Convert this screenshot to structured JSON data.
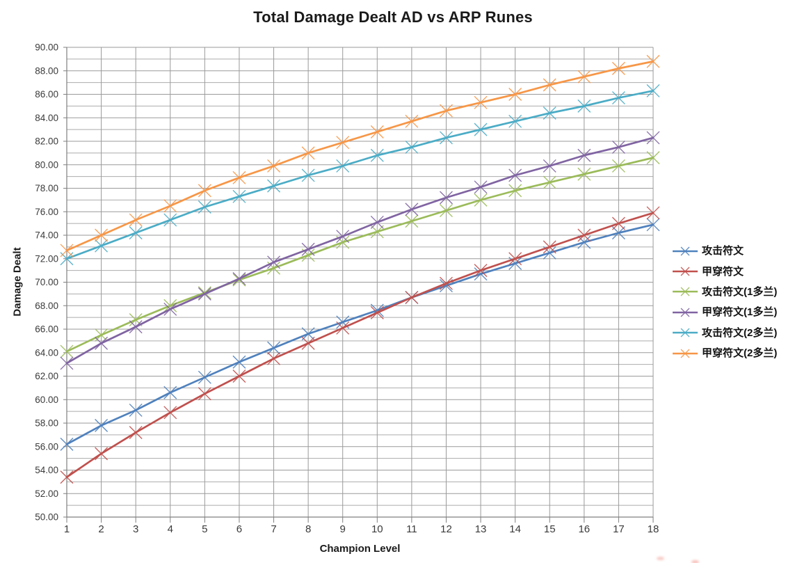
{
  "title": "Total Damage Dealt AD vs ARP Runes",
  "chart_data": {
    "type": "line",
    "title": "Total Damage Dealt AD vs ARP Runes",
    "xlabel": "Champion Level",
    "ylabel": "Damage Dealt",
    "x": [
      1,
      2,
      3,
      4,
      5,
      6,
      7,
      8,
      9,
      10,
      11,
      12,
      13,
      14,
      15,
      16,
      17,
      18
    ],
    "x_tick_labels": [
      "1",
      "2",
      "3",
      "4",
      "5",
      "6",
      "7",
      "8",
      "9",
      "10",
      "11",
      "12",
      "13",
      "14",
      "15",
      "16",
      "17",
      "18"
    ],
    "ylim": [
      50,
      90
    ],
    "ytick_step": 2,
    "minor_grid_step": 1,
    "ytick_labels": [
      "50.00",
      "52.00",
      "54.00",
      "56.00",
      "58.00",
      "60.00",
      "62.00",
      "64.00",
      "66.00",
      "68.00",
      "70.00",
      "72.00",
      "74.00",
      "76.00",
      "78.00",
      "80.00",
      "82.00",
      "84.00",
      "86.00",
      "88.00",
      "90.00"
    ],
    "grid": true,
    "marker": "x",
    "legend_position": "right-middle",
    "series": [
      {
        "name": "攻击符文",
        "color": "#4F81BD",
        "values": [
          56.2,
          57.8,
          59.1,
          60.6,
          61.9,
          63.2,
          64.4,
          65.6,
          66.6,
          67.6,
          68.7,
          69.7,
          70.7,
          71.6,
          72.5,
          73.4,
          74.2,
          74.9
        ]
      },
      {
        "name": "甲穿符文",
        "color": "#C0504D",
        "values": [
          53.4,
          55.4,
          57.2,
          58.9,
          60.5,
          62.0,
          63.5,
          64.8,
          66.1,
          67.4,
          68.7,
          69.9,
          71.0,
          72.0,
          73.0,
          74.0,
          75.0,
          75.9
        ]
      },
      {
        "name": "攻击符文(1多兰)",
        "color": "#9BBB59",
        "values": [
          64.1,
          65.5,
          66.8,
          68.0,
          69.1,
          70.2,
          71.2,
          72.3,
          73.4,
          74.3,
          75.2,
          76.1,
          77.0,
          77.8,
          78.5,
          79.2,
          79.9,
          80.6
        ]
      },
      {
        "name": "甲穿符文(1多兰)",
        "color": "#8064A2",
        "values": [
          63.1,
          64.8,
          66.2,
          67.7,
          69.0,
          70.3,
          71.7,
          72.8,
          73.9,
          75.1,
          76.2,
          77.2,
          78.1,
          79.1,
          79.9,
          80.8,
          81.5,
          82.3
        ]
      },
      {
        "name": "攻击符文(2多兰)",
        "color": "#4BACC6",
        "values": [
          72.0,
          73.1,
          74.2,
          75.3,
          76.4,
          77.3,
          78.2,
          79.1,
          79.9,
          80.8,
          81.5,
          82.3,
          83.0,
          83.7,
          84.4,
          85.0,
          85.7,
          86.3
        ]
      },
      {
        "name": "甲穿符文(2多兰)",
        "color": "#F79646",
        "values": [
          72.7,
          74.0,
          75.3,
          76.5,
          77.8,
          78.9,
          79.9,
          81.0,
          81.9,
          82.8,
          83.7,
          84.6,
          85.3,
          86.0,
          86.8,
          87.5,
          88.2,
          88.8
        ]
      }
    ]
  },
  "style": {
    "gridline_minor_color": "#ababab",
    "gridline_major_color": "#9a9a9a",
    "axis_color": "#7f7f7f",
    "tick_label_color": "#3a3a3a",
    "title_color": "#1a1a1a"
  },
  "artifacts": {
    "bottom_right_smudge_color": "#f2a096"
  }
}
